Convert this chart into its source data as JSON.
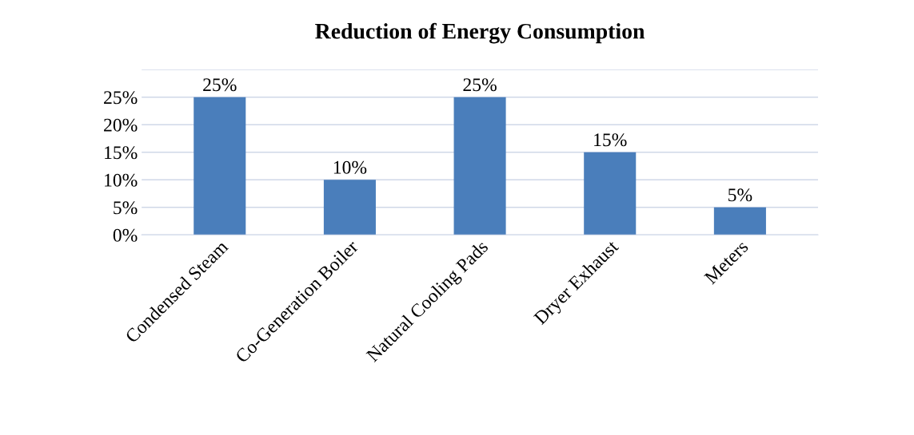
{
  "chart_data": {
    "type": "bar",
    "title": "Reduction of Energy Consumption",
    "categories": [
      "Condensed Steam",
      "Co-Generation Boiler",
      "Natural Cooling Pads",
      "Dryer Exhaust",
      "Meters"
    ],
    "values": [
      25,
      10,
      25,
      15,
      5
    ],
    "value_labels": [
      "25%",
      "10%",
      "25%",
      "15%",
      "5%"
    ],
    "color": "#4a7ebb",
    "ylim": [
      0,
      30
    ],
    "yticks": [
      {
        "value": 0,
        "label": "0%"
      },
      {
        "value": 5,
        "label": "5%"
      },
      {
        "value": 10,
        "label": "10%"
      },
      {
        "value": 15,
        "label": "15%"
      },
      {
        "value": 20,
        "label": "20%"
      },
      {
        "value": 25,
        "label": "25%"
      },
      {
        "value": 30,
        "label": null
      }
    ],
    "grid": "y"
  }
}
